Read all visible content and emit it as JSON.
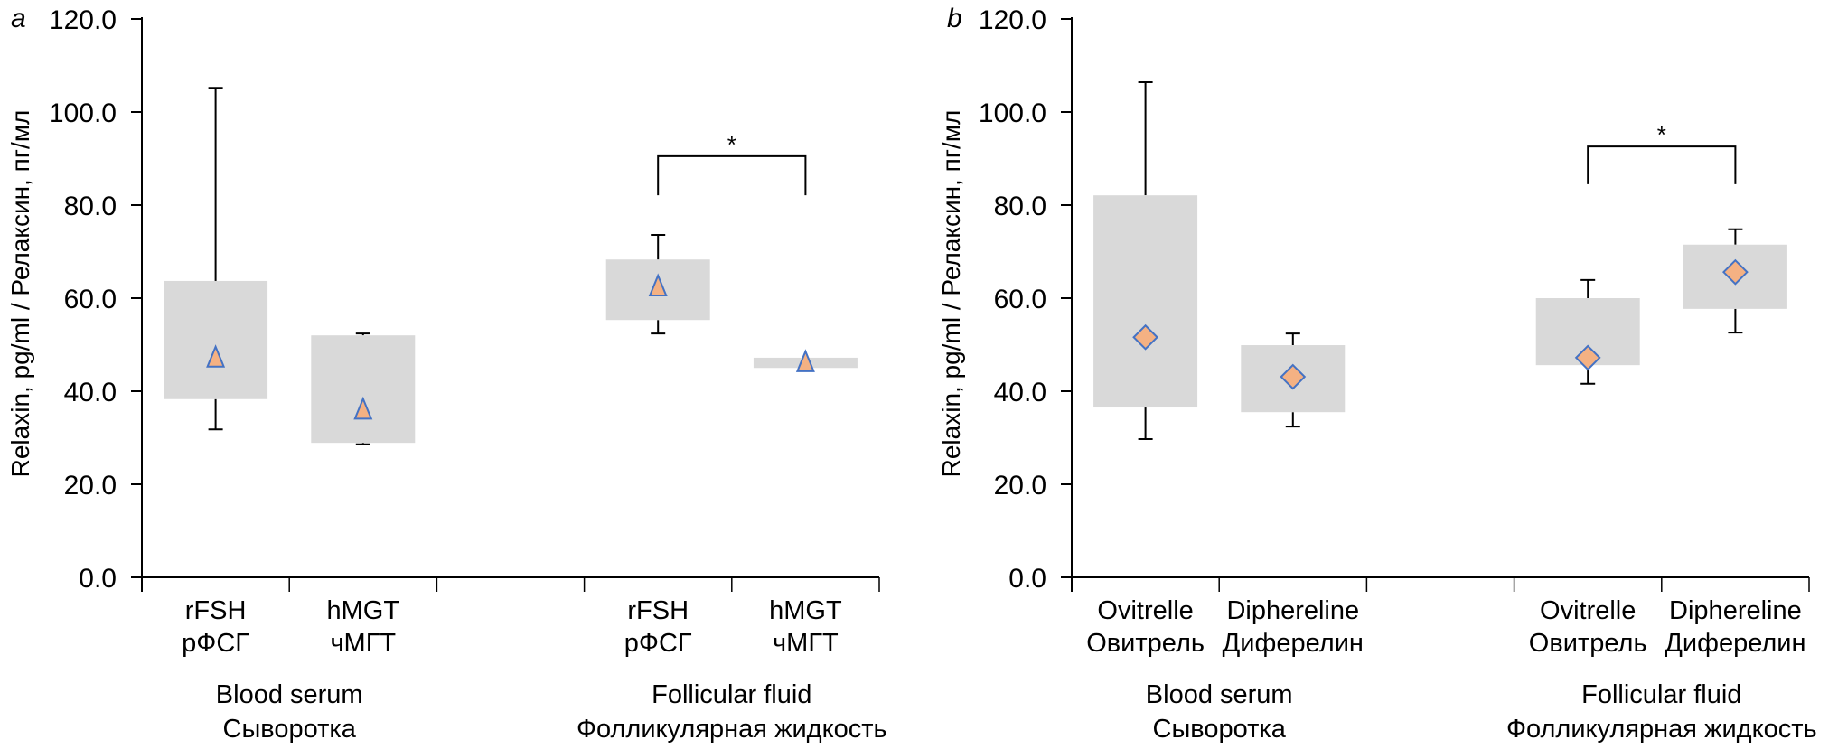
{
  "chart_data": [
    {
      "type": "bar",
      "panel_label": "a",
      "ylabel": "Relaxin, pg/ml / Релаксин, пг/мл",
      "xlabel": "",
      "ylim": [
        0,
        120
      ],
      "yticks": [
        "0.0",
        "20.0",
        "40.0",
        "60.0",
        "80.0",
        "100.0",
        "120.0"
      ],
      "ytick_values": [
        0,
        20,
        40,
        60,
        80,
        100,
        120
      ],
      "grid": false,
      "marker": "triangle",
      "groups": [
        {
          "label_en": "Blood serum",
          "label_ru": "Сыворотка"
        },
        {
          "label_en": "Follicular fluid",
          "label_ru": "Фолликулярная жидкость"
        }
      ],
      "categories": [
        {
          "label_en": "rFSH",
          "label_ru": "рФСГ",
          "group": 0,
          "slot": 0,
          "box_low": 38.3,
          "box_high": 63.7,
          "whisker_low": 31.8,
          "whisker_high": 105.2,
          "mean": 47.0
        },
        {
          "label_en": "hMGT",
          "label_ru": "чМГТ",
          "group": 0,
          "slot": 1,
          "box_low": 28.9,
          "box_high": 52.0,
          "whisker_low": 28.6,
          "whisker_high": 52.4,
          "mean": 35.8
        },
        {
          "label_en": "rFSH",
          "label_ru": "рФСГ",
          "group": 1,
          "slot": 3,
          "box_low": 55.3,
          "box_high": 68.3,
          "whisker_low": 52.4,
          "whisker_high": 73.6,
          "mean": 62.3
        },
        {
          "label_en": "hMGT",
          "label_ru": "чМГТ",
          "group": 1,
          "slot": 4,
          "box_low": 45.0,
          "box_high": 47.2,
          "whisker_low": null,
          "whisker_high": null,
          "mean": 46.0
        }
      ],
      "significance": [
        {
          "from_slot": 3,
          "to_slot": 4,
          "bar_y": 90.5,
          "leg_bottom": 82.1,
          "label": "*"
        }
      ]
    },
    {
      "type": "bar",
      "panel_label": "b",
      "ylabel": "Relaxin, pg/ml / Релаксин, пг/мл",
      "xlabel": "",
      "ylim": [
        0,
        120
      ],
      "yticks": [
        "0.0",
        "20.0",
        "40.0",
        "60.0",
        "80.0",
        "100.0",
        "120.0"
      ],
      "ytick_values": [
        0,
        20,
        40,
        60,
        80,
        100,
        120
      ],
      "grid": false,
      "marker": "diamond",
      "groups": [
        {
          "label_en": "Blood serum",
          "label_ru": "Сыворотка"
        },
        {
          "label_en": "Follicular fluid",
          "label_ru": "Фолликулярная жидкость"
        }
      ],
      "categories": [
        {
          "label_en": "Ovitrelle",
          "label_ru": "Овитрель",
          "group": 0,
          "slot": 0,
          "box_low": 36.5,
          "box_high": 82.1,
          "whisker_low": 29.7,
          "whisker_high": 106.4,
          "mean": 51.6
        },
        {
          "label_en": "Diphereline",
          "label_ru": "Диферелин",
          "group": 0,
          "slot": 1,
          "box_low": 35.5,
          "box_high": 49.9,
          "whisker_low": 32.4,
          "whisker_high": 52.4,
          "mean": 43.1
        },
        {
          "label_en": "Ovitrelle",
          "label_ru": "Овитрель",
          "group": 1,
          "slot": 3,
          "box_low": 45.6,
          "box_high": 60.0,
          "whisker_low": 41.6,
          "whisker_high": 63.9,
          "mean": 47.2
        },
        {
          "label_en": "Diphereline",
          "label_ru": "Диферелин",
          "group": 1,
          "slot": 4,
          "box_low": 57.7,
          "box_high": 71.5,
          "whisker_low": 52.6,
          "whisker_high": 74.8,
          "mean": 65.6
        }
      ],
      "significance": [
        {
          "from_slot": 3,
          "to_slot": 4,
          "bar_y": 92.6,
          "leg_bottom": 84.5,
          "label": "*"
        }
      ]
    }
  ],
  "colors": {
    "box_fill": "#d9d9d9",
    "marker_fill": "#f4b183",
    "marker_stroke": "#4472c4",
    "axis": "#000000"
  }
}
